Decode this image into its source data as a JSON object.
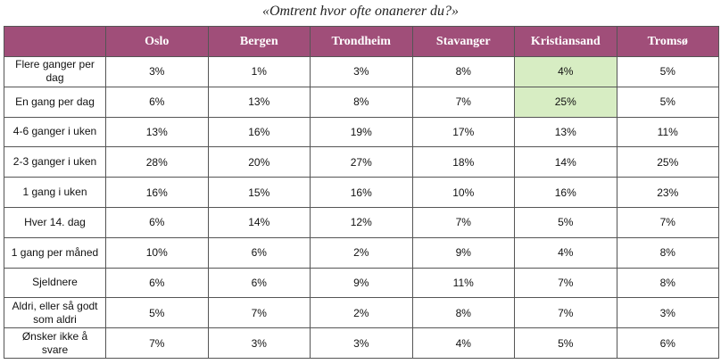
{
  "title": "«Omtrent hvor ofte onanerer du?»",
  "highlight_color": "#d7edc3",
  "header_color": "#a04e79",
  "columns": [
    "Oslo",
    "Bergen",
    "Trondheim",
    "Stavanger",
    "Kristiansand",
    "Tromsø"
  ],
  "rows": [
    {
      "label": "Flere ganger per dag",
      "cells": [
        "3%",
        "1%",
        "3%",
        "8%",
        "4%",
        "5%"
      ]
    },
    {
      "label": "En gang per dag",
      "cells": [
        "6%",
        "13%",
        "8%",
        "7%",
        "25%",
        "5%"
      ]
    },
    {
      "label": "4-6 ganger i uken",
      "cells": [
        "13%",
        "16%",
        "19%",
        "17%",
        "13%",
        "11%"
      ]
    },
    {
      "label": "2-3 ganger i uken",
      "cells": [
        "28%",
        "20%",
        "27%",
        "18%",
        "14%",
        "25%"
      ]
    },
    {
      "label": "1 gang i uken",
      "cells": [
        "16%",
        "15%",
        "16%",
        "10%",
        "16%",
        "23%"
      ]
    },
    {
      "label": "Hver 14. dag",
      "cells": [
        "6%",
        "14%",
        "12%",
        "7%",
        "5%",
        "7%"
      ]
    },
    {
      "label": "1 gang per måned",
      "cells": [
        "10%",
        "6%",
        "2%",
        "9%",
        "4%",
        "8%"
      ]
    },
    {
      "label": "Sjeldnere",
      "cells": [
        "6%",
        "6%",
        "9%",
        "11%",
        "7%",
        "8%"
      ]
    },
    {
      "label": "Aldri, eller så godt som aldri",
      "cells": [
        "5%",
        "7%",
        "2%",
        "8%",
        "7%",
        "3%"
      ]
    },
    {
      "label": "Ønsker ikke å svare",
      "cells": [
        "7%",
        "3%",
        "3%",
        "4%",
        "5%",
        "6%"
      ]
    }
  ],
  "highlighted_cells": [
    {
      "row": 0,
      "col": 4
    },
    {
      "row": 1,
      "col": 4
    }
  ],
  "chart_data": {
    "type": "table",
    "title": "«Omtrent hvor ofte onanerer du?»",
    "categories": [
      "Flere ganger per dag",
      "En gang per dag",
      "4-6 ganger i uken",
      "2-3 ganger i uken",
      "1 gang i uken",
      "Hver 14. dag",
      "1 gang per måned",
      "Sjeldnere",
      "Aldri, eller så godt som aldri",
      "Ønsker ikke å svare"
    ],
    "series": [
      {
        "name": "Oslo",
        "values": [
          3,
          6,
          13,
          28,
          16,
          6,
          10,
          6,
          5,
          7
        ]
      },
      {
        "name": "Bergen",
        "values": [
          1,
          13,
          16,
          20,
          15,
          14,
          6,
          6,
          7,
          3
        ]
      },
      {
        "name": "Trondheim",
        "values": [
          3,
          8,
          19,
          27,
          16,
          12,
          2,
          9,
          2,
          3
        ]
      },
      {
        "name": "Stavanger",
        "values": [
          8,
          7,
          17,
          18,
          10,
          7,
          9,
          11,
          8,
          4
        ]
      },
      {
        "name": "Kristiansand",
        "values": [
          4,
          25,
          13,
          14,
          16,
          5,
          4,
          7,
          7,
          5
        ]
      },
      {
        "name": "Tromsø",
        "values": [
          5,
          5,
          11,
          25,
          23,
          7,
          8,
          8,
          3,
          6
        ]
      }
    ]
  }
}
